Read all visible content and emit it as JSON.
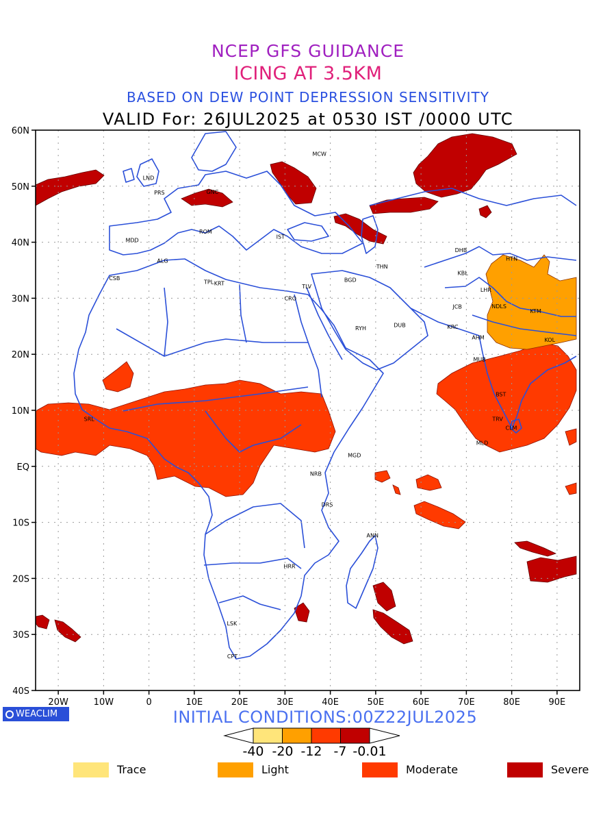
{
  "titles": {
    "line1": "NCEP GFS GUIDANCE",
    "line2": "ICING AT 3.5KM",
    "line3": "BASED ON DEW POINT DEPRESSION SENSITIVITY",
    "line4": "VALID For: 26JUL2025 at 0530 IST /0000 UTC"
  },
  "axes": {
    "lat_labels": [
      "60N",
      "50N",
      "40N",
      "30N",
      "20N",
      "10N",
      "EQ",
      "10S",
      "20S",
      "30S",
      "40S"
    ],
    "lon_labels": [
      "20W",
      "10W",
      "0",
      "10E",
      "20E",
      "30E",
      "40E",
      "50E",
      "60E",
      "70E",
      "80E",
      "90E"
    ]
  },
  "cities": [
    {
      "code": "MCW",
      "lon": 37.6,
      "lat": 55.8
    },
    {
      "code": "LND",
      "lon": -0.1,
      "lat": 51.5
    },
    {
      "code": "PRS",
      "lon": 2.3,
      "lat": 48.9
    },
    {
      "code": "GNC",
      "lon": 14.0,
      "lat": 49.0
    },
    {
      "code": "MDD",
      "lon": -3.7,
      "lat": 40.4
    },
    {
      "code": "ROM",
      "lon": 12.5,
      "lat": 41.9
    },
    {
      "code": "IST",
      "lon": 29.0,
      "lat": 41.0
    },
    {
      "code": "ALG",
      "lon": 3.0,
      "lat": 36.7
    },
    {
      "code": "CSB",
      "lon": -7.6,
      "lat": 33.6
    },
    {
      "code": "TPL",
      "lon": 13.2,
      "lat": 32.9
    },
    {
      "code": "KRT",
      "lon": 15.5,
      "lat": 32.7
    },
    {
      "code": "CRO",
      "lon": 31.2,
      "lat": 30.0
    },
    {
      "code": "TLV",
      "lon": 34.8,
      "lat": 32.1
    },
    {
      "code": "BGD",
      "lon": 44.4,
      "lat": 33.3
    },
    {
      "code": "THN",
      "lon": 51.4,
      "lat": 35.7
    },
    {
      "code": "DHB",
      "lon": 68.8,
      "lat": 38.6
    },
    {
      "code": "HTN",
      "lon": 80.0,
      "lat": 37.1
    },
    {
      "code": "KBL",
      "lon": 69.2,
      "lat": 34.5
    },
    {
      "code": "LHR",
      "lon": 74.3,
      "lat": 31.5
    },
    {
      "code": "NDLS",
      "lon": 77.2,
      "lat": 28.6
    },
    {
      "code": "KTM",
      "lon": 85.3,
      "lat": 27.7
    },
    {
      "code": "JCB",
      "lon": 68.0,
      "lat": 28.5
    },
    {
      "code": "RYH",
      "lon": 46.7,
      "lat": 24.7
    },
    {
      "code": "DUB",
      "lon": 55.3,
      "lat": 25.2
    },
    {
      "code": "KRC",
      "lon": 67.0,
      "lat": 24.9
    },
    {
      "code": "AHM",
      "lon": 72.6,
      "lat": 23.0
    },
    {
      "code": "KOL",
      "lon": 88.4,
      "lat": 22.6
    },
    {
      "code": "MUB",
      "lon": 72.9,
      "lat": 19.1
    },
    {
      "code": "SRL",
      "lon": -13.2,
      "lat": 8.5
    },
    {
      "code": "BST",
      "lon": 77.6,
      "lat": 12.9
    },
    {
      "code": "TRV",
      "lon": 76.9,
      "lat": 8.5
    },
    {
      "code": "CLM",
      "lon": 79.9,
      "lat": 6.9
    },
    {
      "code": "MLD",
      "lon": 73.5,
      "lat": 4.2
    },
    {
      "code": "MGD",
      "lon": 45.3,
      "lat": 2.0
    },
    {
      "code": "NRB",
      "lon": 36.8,
      "lat": -1.3
    },
    {
      "code": "DRS",
      "lon": 39.3,
      "lat": -6.8
    },
    {
      "code": "ANN",
      "lon": 49.3,
      "lat": -12.3
    },
    {
      "code": "HRR",
      "lon": 31.0,
      "lat": -17.8
    },
    {
      "code": "LSK",
      "lon": 18.3,
      "lat": -28.0
    },
    {
      "code": "CPT",
      "lon": 18.4,
      "lat": -33.9
    }
  ],
  "footer": {
    "logo": "WEACLIM",
    "initial_conditions": "INITIAL CONDITIONS:00Z22JUL2025"
  },
  "colorbar": {
    "labels": [
      "-40",
      "-20",
      "-12",
      "-7",
      "-0.01"
    ],
    "colors": [
      "#ffe57a",
      "#ffa000",
      "#ff3a00",
      "#c00000"
    ]
  },
  "legend": [
    {
      "label": "Trace",
      "color": "#ffe57a"
    },
    {
      "label": "Light",
      "color": "#ffa000"
    },
    {
      "label": "Moderate",
      "color": "#ff3a00"
    },
    {
      "label": "Severe",
      "color": "#c00000"
    }
  ],
  "colors": {
    "coastline": "#2a4fd8",
    "grid": "#999999"
  }
}
